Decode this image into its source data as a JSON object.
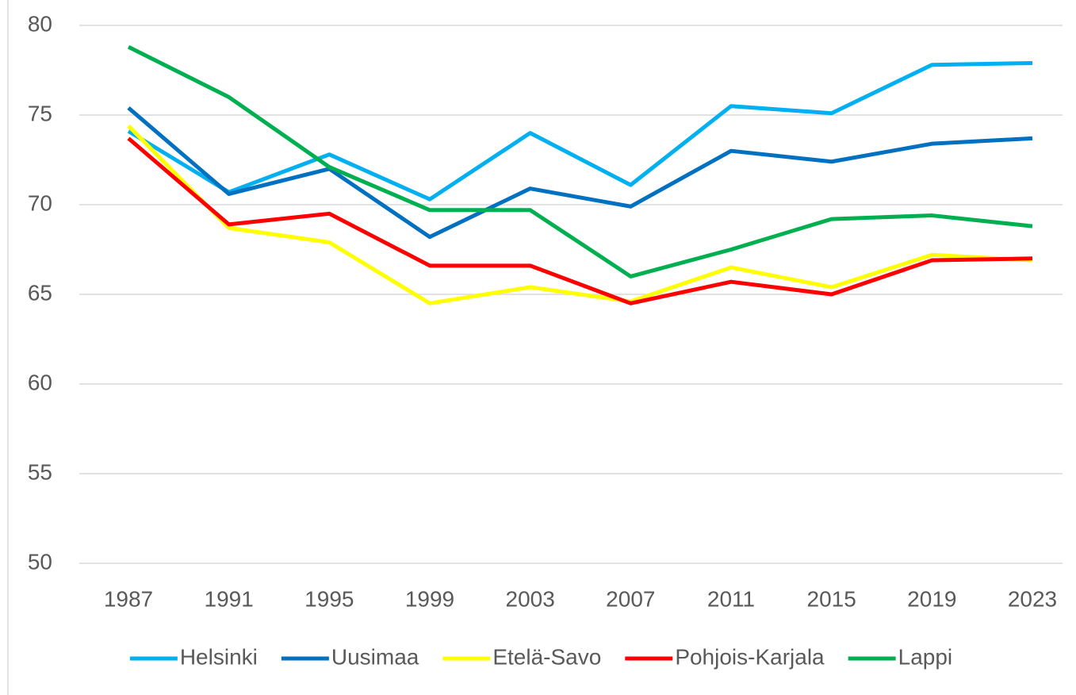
{
  "chart_data": {
    "type": "line",
    "categories": [
      "1987",
      "1991",
      "1995",
      "1999",
      "2003",
      "2007",
      "2011",
      "2015",
      "2019",
      "2023"
    ],
    "series": [
      {
        "name": "Helsinki",
        "color": "#00b0f0",
        "values": [
          74.1,
          70.7,
          72.8,
          70.3,
          74.0,
          71.1,
          75.5,
          75.1,
          77.8,
          77.9
        ]
      },
      {
        "name": "Uusimaa",
        "color": "#0070c0",
        "values": [
          75.4,
          70.6,
          72.0,
          68.2,
          70.9,
          69.9,
          73.0,
          72.4,
          73.4,
          73.7
        ]
      },
      {
        "name": "Etelä-Savo",
        "color": "#ffff00",
        "values": [
          74.4,
          68.7,
          67.9,
          64.5,
          65.4,
          64.6,
          66.5,
          65.4,
          67.2,
          66.9
        ]
      },
      {
        "name": "Pohjois-Karjala",
        "color": "#ff0000",
        "values": [
          73.7,
          68.9,
          69.5,
          66.6,
          66.6,
          64.5,
          65.7,
          65.0,
          66.9,
          67.0
        ]
      },
      {
        "name": "Lappi",
        "color": "#00b050",
        "values": [
          78.8,
          76.0,
          72.1,
          69.7,
          69.7,
          66.0,
          67.5,
          69.2,
          69.4,
          68.8
        ]
      }
    ],
    "ylim": [
      50,
      80
    ],
    "yticks": [
      50,
      55,
      60,
      65,
      70,
      75,
      80
    ],
    "grid": true,
    "legend": "bottom"
  }
}
